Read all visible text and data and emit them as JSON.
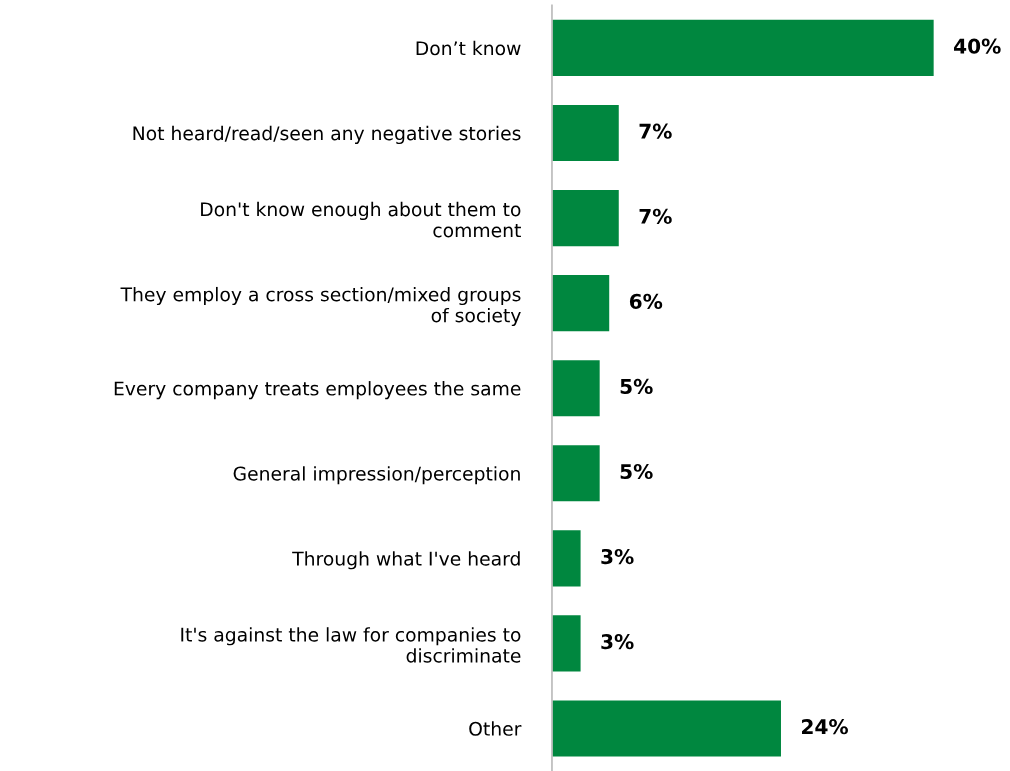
{
  "chart_data": {
    "type": "bar",
    "orientation": "horizontal",
    "data_labels": true,
    "categories": [
      "Don’t know",
      "Not heard/read/seen any negative stories",
      "Don't know enough about them to\ncomment",
      "They employ a cross section/mixed groups\nof society",
      "Every company treats employees the same",
      "General impression/perception",
      "Through what I've heard",
      "It's against the law for companies to\ndiscriminate",
      "Other"
    ],
    "values": [
      40,
      7,
      7,
      6,
      5,
      5,
      3,
      3,
      24
    ],
    "value_labels": [
      "40%",
      "7%",
      "7%",
      "6%",
      "5%",
      "5%",
      "3%",
      "3%",
      "24%"
    ],
    "color": "#00873f",
    "grid": false,
    "legend": false
  }
}
